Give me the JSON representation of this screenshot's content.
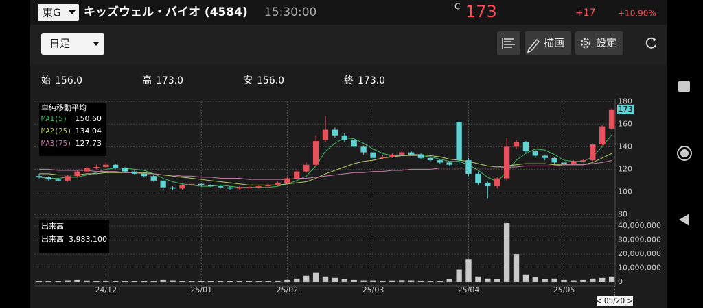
{
  "header": {
    "market": "東G",
    "title": "キッズウェル・バイオ (4584)",
    "time": "15:30:00",
    "price_flag": "C",
    "price": "173",
    "change": "+17",
    "change_pct": "+10.90%"
  },
  "toolbar": {
    "period": "日足",
    "draw": "描画",
    "settings": "設定"
  },
  "summary": {
    "items": [
      {
        "label": "始",
        "value": "156.0"
      },
      {
        "label": "高",
        "value": "173.0"
      },
      {
        "label": "安",
        "value": "156.0"
      },
      {
        "label": "終",
        "value": "173.0"
      }
    ]
  },
  "chart_data": {
    "type": "candlestick",
    "x": [
      0,
      1,
      2,
      3,
      4,
      5,
      6,
      7,
      8,
      9,
      10,
      11,
      12,
      13,
      14,
      15,
      16,
      17,
      18,
      19,
      20,
      21,
      22,
      23,
      24,
      25,
      26,
      27,
      28,
      29,
      30,
      31,
      32,
      33,
      34,
      35,
      36,
      37,
      38,
      39,
      40,
      41,
      42,
      43,
      44,
      45,
      46,
      47,
      48,
      49,
      50,
      51,
      52,
      53,
      54,
      55,
      56,
      57,
      58,
      59,
      60
    ],
    "xlim": [
      -0.5,
      60.5
    ],
    "xticks": [
      {
        "value": 7,
        "label": "24/12"
      },
      {
        "value": 17,
        "label": "25/01"
      },
      {
        "value": 26,
        "label": "25/02"
      },
      {
        "value": 35,
        "label": "25/03"
      },
      {
        "value": 45,
        "label": "25/04"
      },
      {
        "value": 55,
        "label": "25/05"
      }
    ],
    "open": [
      114,
      113,
      111,
      110,
      114,
      118,
      121,
      122,
      124,
      121,
      118,
      116,
      114,
      110,
      104,
      103,
      106,
      107,
      106,
      105,
      104,
      103,
      104,
      104,
      105,
      106,
      108,
      112,
      118,
      124,
      146,
      155,
      150,
      146,
      140,
      135,
      130,
      131,
      133,
      135,
      133,
      130,
      128,
      126,
      162,
      128,
      116,
      108,
      105,
      112,
      140,
      144,
      136,
      132,
      130,
      126,
      125,
      127,
      128,
      142,
      156
    ],
    "high": [
      116,
      114,
      112,
      115,
      119,
      122,
      124,
      126,
      125,
      122,
      119,
      117,
      115,
      111,
      105,
      107,
      108,
      108,
      107,
      106,
      105,
      105,
      105,
      106,
      107,
      109,
      113,
      120,
      126,
      150,
      167,
      157,
      152,
      147,
      141,
      136,
      133,
      134,
      136,
      136,
      134,
      131,
      129,
      127,
      162,
      130,
      118,
      109,
      113,
      148,
      146,
      145,
      138,
      133,
      131,
      127,
      128,
      129,
      143,
      159,
      174
    ],
    "low": [
      112,
      110,
      109,
      109,
      113,
      117,
      120,
      121,
      120,
      117,
      115,
      113,
      109,
      102,
      102,
      102,
      105,
      105,
      104,
      103,
      102,
      102,
      103,
      103,
      104,
      105,
      107,
      111,
      117,
      123,
      144,
      148,
      144,
      139,
      133,
      128,
      129,
      130,
      132,
      132,
      129,
      127,
      125,
      123,
      124,
      114,
      106,
      94,
      103,
      110,
      138,
      134,
      130,
      128,
      124,
      123,
      124,
      126,
      127,
      141,
      155
    ],
    "close": [
      113,
      111,
      110,
      114,
      118,
      121,
      122,
      124,
      121,
      118,
      116,
      114,
      110,
      104,
      103,
      106,
      107,
      106,
      105,
      104,
      103,
      104,
      104,
      105,
      106,
      108,
      112,
      118,
      124,
      145,
      155,
      150,
      146,
      140,
      135,
      130,
      131,
      133,
      135,
      133,
      130,
      128,
      126,
      124,
      128,
      116,
      108,
      105,
      112,
      140,
      144,
      136,
      132,
      130,
      126,
      125,
      127,
      128,
      142,
      158,
      173
    ],
    "up_color": "#e8505b",
    "down_color": "#5fd3d3",
    "ylim": [
      79,
      182
    ],
    "yticks": [
      80,
      100,
      120,
      140,
      160,
      180
    ],
    "price_tag": 173,
    "ma_title": "単純移動平均",
    "series": [
      {
        "name": "MA1(5)",
        "color": "#43b865",
        "legend_value": "150.60",
        "values": [
          113,
          112,
          112,
          113,
          113,
          115,
          117,
          120,
          121,
          121,
          120,
          119,
          116,
          112,
          109,
          107,
          106,
          105,
          105,
          106,
          105,
          104,
          104,
          104,
          104,
          105,
          107,
          110,
          114,
          123,
          136,
          143,
          148,
          147,
          143,
          138,
          134,
          132,
          132,
          132,
          132,
          131,
          129,
          127,
          127,
          124,
          119,
          113,
          109,
          118,
          128,
          134,
          138,
          137,
          133,
          128,
          127,
          127,
          131,
          140,
          150.6
        ]
      },
      {
        "name": "MA2(25)",
        "color": "#b9cf6f",
        "legend_value": "134.04",
        "values": [
          116,
          116,
          115,
          115,
          115,
          116,
          116,
          117,
          117,
          117,
          117,
          117,
          116,
          115,
          114,
          113,
          112,
          111,
          110,
          109,
          108,
          107,
          106,
          106,
          106,
          106,
          107,
          108,
          109,
          112,
          116,
          119,
          122,
          125,
          127,
          128,
          130,
          131,
          132,
          133,
          133,
          132,
          131,
          129,
          128,
          127,
          125,
          123,
          122,
          123,
          124,
          125,
          125,
          125,
          124,
          124,
          124,
          124,
          126,
          130,
          134.04
        ]
      },
      {
        "name": "MA3(75)",
        "color": "#c77da8",
        "legend_value": "127.73",
        "values": [
          120,
          120,
          119,
          119,
          119,
          119,
          118,
          118,
          118,
          117,
          117,
          116,
          116,
          115,
          115,
          114,
          114,
          113,
          113,
          112,
          112,
          112,
          111,
          111,
          111,
          111,
          111,
          112,
          112,
          113,
          114,
          115,
          116,
          117,
          117,
          118,
          118,
          119,
          119,
          120,
          120,
          120,
          121,
          121,
          121,
          121,
          121,
          121,
          121,
          122,
          122,
          123,
          123,
          123,
          123,
          124,
          124,
          124,
          125,
          126,
          127.73
        ]
      }
    ],
    "volume_title": "出来高",
    "volume_name": "出来高",
    "volume_last": "3,983,100",
    "volume_color": "#c8c8c8",
    "volume": [
      900000,
      800000,
      700000,
      1200000,
      1500000,
      1100000,
      900000,
      1000000,
      800000,
      700000,
      600000,
      700000,
      900000,
      1500000,
      1200000,
      900000,
      800000,
      700000,
      600000,
      600000,
      500000,
      600000,
      700000,
      800000,
      900000,
      1000000,
      1500000,
      2500000,
      4500000,
      6500000,
      4000000,
      3000000,
      2000000,
      1500000,
      1200000,
      1200000,
      1000000,
      1100000,
      1300000,
      1200000,
      1000000,
      900000,
      900000,
      2000000,
      9000000,
      16000000,
      4000000,
      2500000,
      2000000,
      42000000,
      20000000,
      5000000,
      3500000,
      2000000,
      2500000,
      1500000,
      1200000,
      1500000,
      2500000,
      3000000,
      3983100
    ],
    "vlim": [
      -1000000,
      44000000
    ],
    "vticks": [
      0,
      {
        "value": 10000000,
        "label": "10,000,000"
      },
      {
        "value": 20000000,
        "label": "20,000,000"
      },
      {
        "value": 30000000,
        "label": "30,000,000"
      },
      {
        "value": 40000000,
        "label": "40,000,000"
      }
    ],
    "date_tag": "< 05/20 >"
  }
}
